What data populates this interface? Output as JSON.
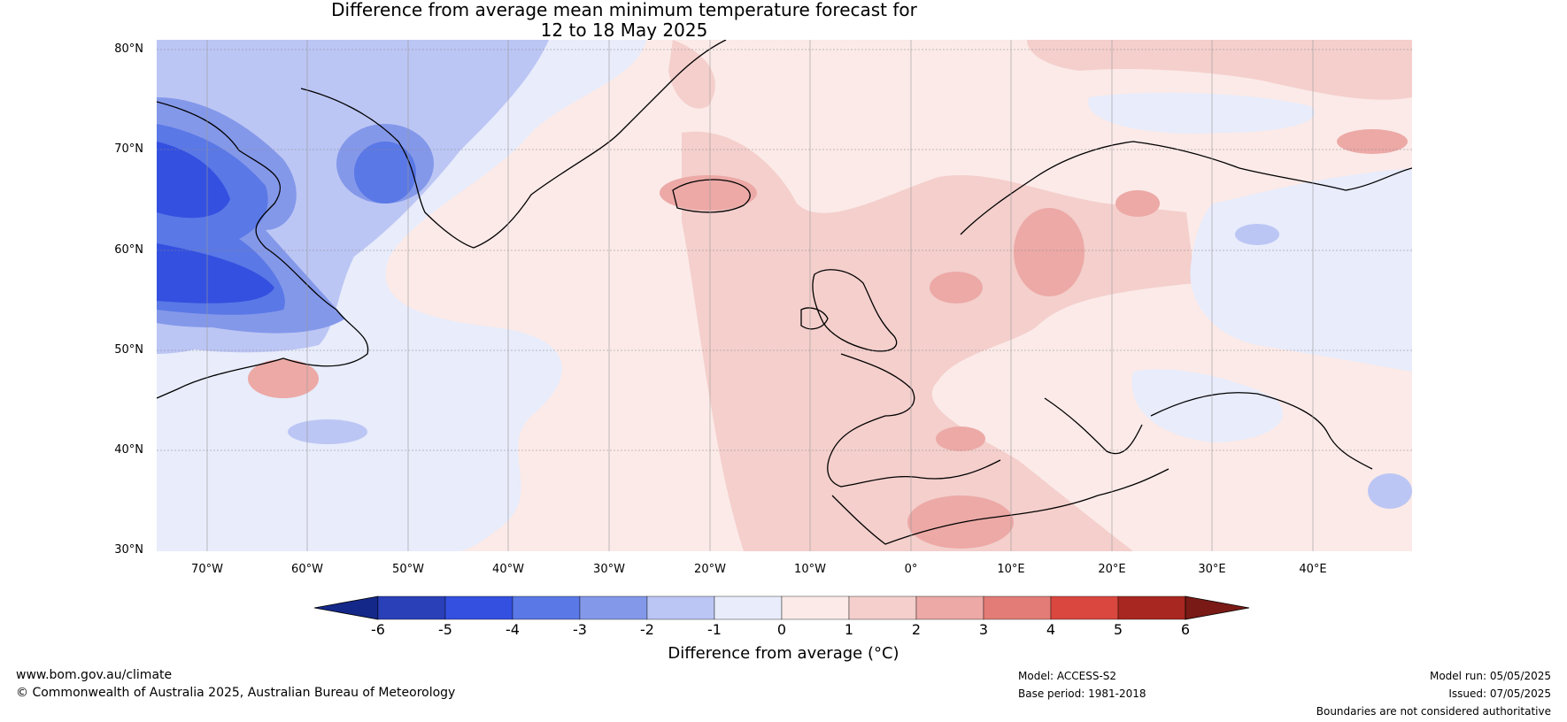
{
  "title": {
    "line1": "Difference from average mean minimum temperature forecast for",
    "line2": "12 to 18 May 2025"
  },
  "axes": {
    "lat_labels": [
      "80°N",
      "70°N",
      "60°N",
      "50°N",
      "40°N",
      "30°N"
    ],
    "lon_labels": [
      "70°W",
      "60°W",
      "50°W",
      "40°W",
      "30°W",
      "20°W",
      "10°W",
      "0°",
      "10°E",
      "20°E",
      "30°E",
      "40°E"
    ]
  },
  "colorbar": {
    "label": "Difference from average (°C)",
    "ticks": [
      "-6",
      "-5",
      "-4",
      "-3",
      "-2",
      "-1",
      "0",
      "1",
      "2",
      "3",
      "4",
      "5",
      "6"
    ],
    "colors": [
      "#14288a",
      "#2a40b8",
      "#3450e0",
      "#5a78e6",
      "#8498ea",
      "#bcc6f4",
      "#e8ecfb",
      "#fbeae8",
      "#f4cfcc",
      "#eca9a6",
      "#e37c77",
      "#d9473e",
      "#a82720",
      "#7a1a16"
    ]
  },
  "footer": {
    "website": "www.bom.gov.au/climate",
    "copyright": "© Commonwealth of Australia 2025, Australian Bureau of Meteorology",
    "model": "Model: ACCESS-S2",
    "base_period": "Base period: 1981-2018",
    "model_run": "Model run: 05/05/2025",
    "issued": "Issued: 07/05/2025",
    "disclaimer": "Boundaries are not considered authoritative"
  }
}
